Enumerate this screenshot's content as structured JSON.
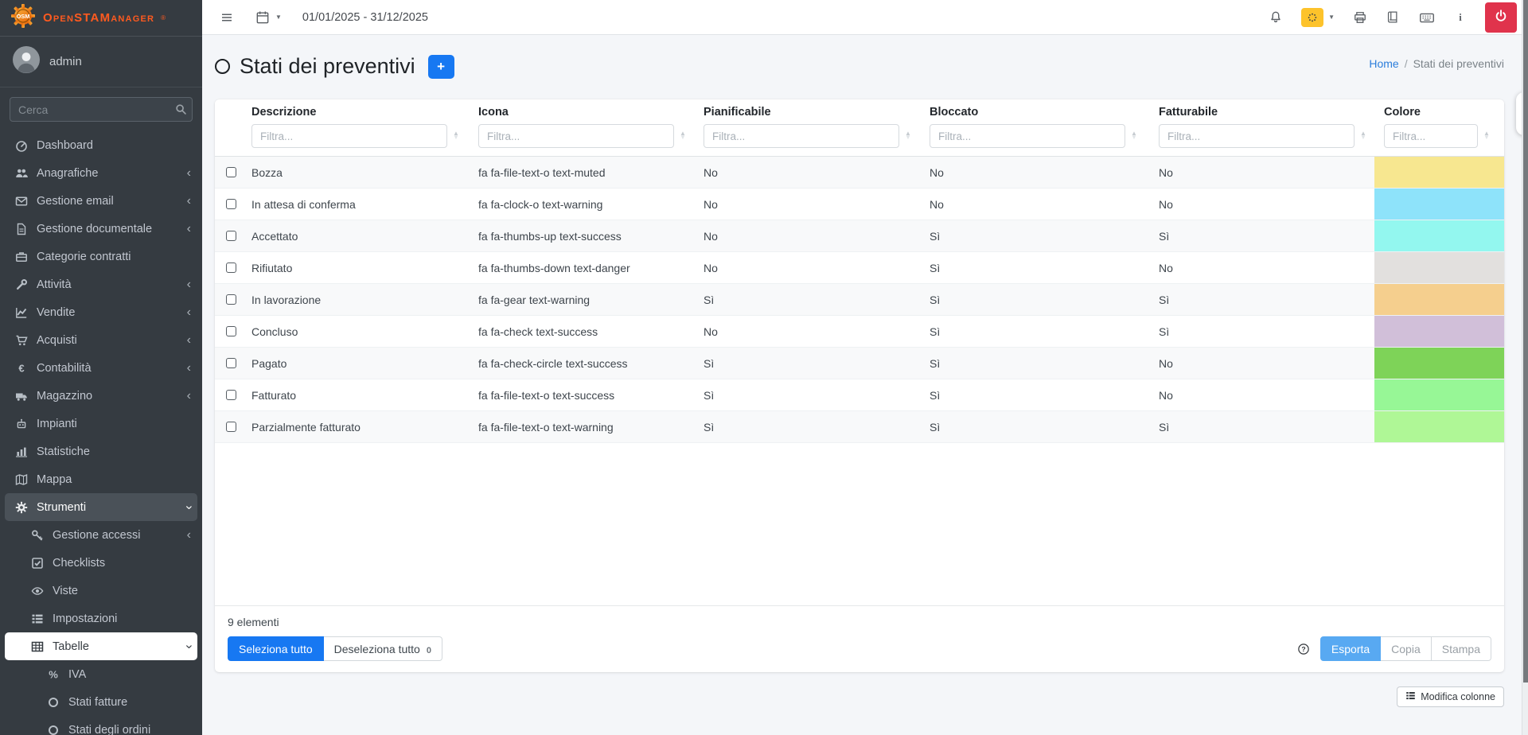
{
  "brand": {
    "name": "OpenSTAManager",
    "registered": "®",
    "logo_monogram": "OSM",
    "accent_orange": "#ff5a1f"
  },
  "sidebar": {
    "user": "admin",
    "search_placeholder": "Cerca",
    "items": [
      {
        "label": "Dashboard",
        "icon": "tachometer-icon"
      },
      {
        "label": "Anagrafiche",
        "icon": "users-icon",
        "chevron": "left"
      },
      {
        "label": "Gestione email",
        "icon": "envelope-icon",
        "chevron": "left"
      },
      {
        "label": "Gestione documentale",
        "icon": "document-icon",
        "chevron": "left"
      },
      {
        "label": "Categorie contratti",
        "icon": "briefcase-icon"
      },
      {
        "label": "Attività",
        "icon": "wrench-icon",
        "chevron": "left"
      },
      {
        "label": "Vendite",
        "icon": "line-chart-icon",
        "chevron": "left"
      },
      {
        "label": "Acquisti",
        "icon": "cart-icon",
        "chevron": "left"
      },
      {
        "label": "Contabilità",
        "icon": "euro-icon",
        "chevron": "left"
      },
      {
        "label": "Magazzino",
        "icon": "truck-icon",
        "chevron": "left"
      },
      {
        "label": "Impianti",
        "icon": "robot-icon"
      },
      {
        "label": "Statistiche",
        "icon": "bar-chart-icon"
      },
      {
        "label": "Mappa",
        "icon": "map-icon"
      },
      {
        "label": "Strumenti",
        "icon": "gear-icon",
        "chevron": "down",
        "state": "open",
        "children": [
          {
            "label": "Gestione accessi",
            "icon": "key-icon",
            "chevron": "left"
          },
          {
            "label": "Checklists",
            "icon": "check-square-icon"
          },
          {
            "label": "Viste",
            "icon": "eye-icon"
          },
          {
            "label": "Impostazioni",
            "icon": "list-icon"
          },
          {
            "label": "Tabelle",
            "icon": "table-icon",
            "chevron": "down",
            "state": "active",
            "children": [
              {
                "label": "IVA",
                "icon": "percent-icon"
              },
              {
                "label": "Stati fatture",
                "icon": "circle-icon"
              },
              {
                "label": "Stati degli ordini",
                "icon": "circle-icon"
              }
            ]
          }
        ]
      }
    ]
  },
  "topbar": {
    "date_range": "01/01/2025 - 31/12/2025"
  },
  "page": {
    "title": "Stati dei preventivi",
    "add_button": "+"
  },
  "breadcrumb": {
    "home": "Home",
    "separator": "/",
    "current": "Stati dei preventivi"
  },
  "table": {
    "columns": [
      {
        "label": "Descrizione",
        "filter_placeholder": "Filtra..."
      },
      {
        "label": "Icona",
        "filter_placeholder": "Filtra..."
      },
      {
        "label": "Pianificabile",
        "filter_placeholder": "Filtra..."
      },
      {
        "label": "Bloccato",
        "filter_placeholder": "Filtra..."
      },
      {
        "label": "Fatturabile",
        "filter_placeholder": "Filtra..."
      },
      {
        "label": "Colore",
        "filter_placeholder": "Filtra..."
      }
    ],
    "rows": [
      {
        "descrizione": "Bozza",
        "icona": "fa fa-file-text-o text-muted",
        "pianificabile": "No",
        "bloccato": "No",
        "fatturabile": "No",
        "colore": "#f7e790"
      },
      {
        "descrizione": "In attesa di conferma",
        "icona": "fa fa-clock-o text-warning",
        "pianificabile": "No",
        "bloccato": "No",
        "fatturabile": "No",
        "colore": "#8ee3fa"
      },
      {
        "descrizione": "Accettato",
        "icona": "fa fa-thumbs-up text-success",
        "pianificabile": "No",
        "bloccato": "Sì",
        "fatturabile": "Sì",
        "colore": "#93f7ef"
      },
      {
        "descrizione": "Rifiutato",
        "icona": "fa fa-thumbs-down text-danger",
        "pianificabile": "No",
        "bloccato": "Sì",
        "fatturabile": "No",
        "colore": "#e2e0de"
      },
      {
        "descrizione": "In lavorazione",
        "icona": "fa fa-gear text-warning",
        "pianificabile": "Sì",
        "bloccato": "Sì",
        "fatturabile": "Sì",
        "colore": "#f5cf8e"
      },
      {
        "descrizione": "Concluso",
        "icona": "fa fa-check text-success",
        "pianificabile": "No",
        "bloccato": "Sì",
        "fatturabile": "Sì",
        "colore": "#d1bfd9"
      },
      {
        "descrizione": "Pagato",
        "icona": "fa fa-check-circle text-success",
        "pianificabile": "Sì",
        "bloccato": "Sì",
        "fatturabile": "No",
        "colore": "#7ed358"
      },
      {
        "descrizione": "Fatturato",
        "icona": "fa fa-file-text-o text-success",
        "pianificabile": "Sì",
        "bloccato": "Sì",
        "fatturabile": "No",
        "colore": "#97f796"
      },
      {
        "descrizione": "Parzialmente fatturato",
        "icona": "fa fa-file-text-o text-warning",
        "pianificabile": "Sì",
        "bloccato": "Sì",
        "fatturabile": "Sì",
        "colore": "#aff796"
      }
    ]
  },
  "footer": {
    "count_label": "9 elementi",
    "select_all": "Seleziona tutto",
    "deselect_all": "Deseleziona tutto",
    "deselect_badge": "0",
    "export": "Esporta",
    "copy": "Copia",
    "print": "Stampa",
    "edit_columns": "Modifica colonne"
  },
  "colors": {
    "accent_blue": "#1778f2",
    "export_blue": "#58a9f2",
    "power_red": "#e0334c",
    "badge_yellow": "#fdc32b",
    "sidebar_bg": "#353b41"
  }
}
